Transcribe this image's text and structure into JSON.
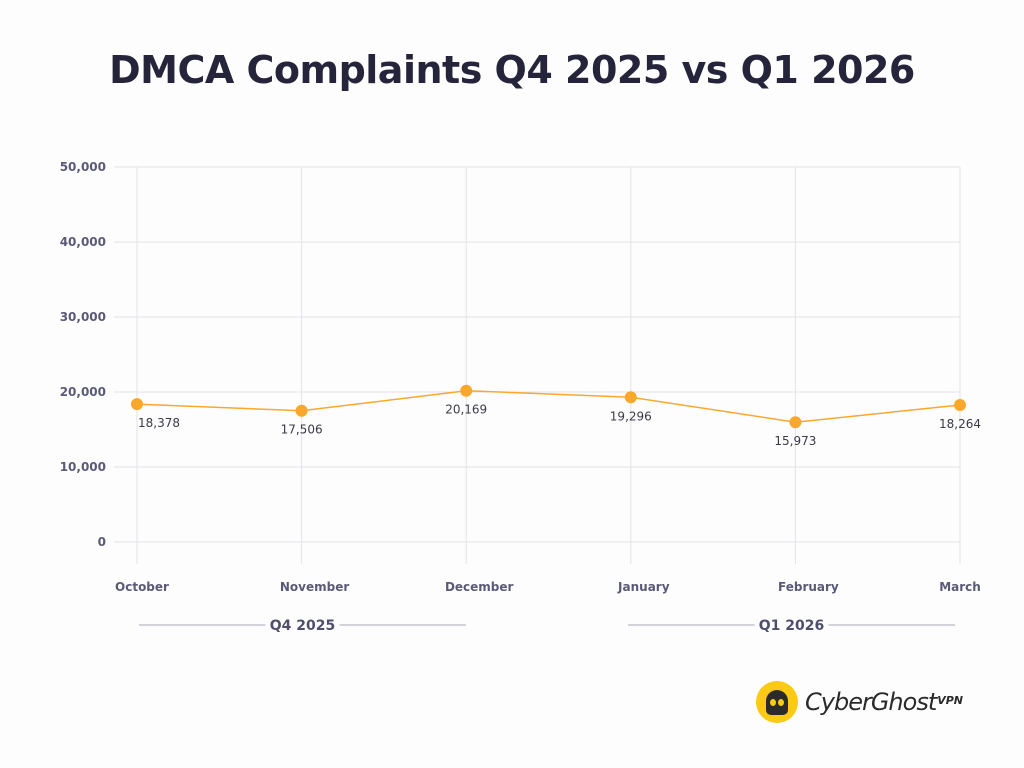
{
  "chart_data": {
    "type": "line",
    "title": "DMCA Complaints Q4 2025 vs Q1 2026",
    "xlabel": "",
    "ylabel": "",
    "categories": [
      "October",
      "November",
      "December",
      "January",
      "February",
      "March"
    ],
    "series": [
      {
        "name": "DMCA Complaints",
        "values": [
          18378,
          17506,
          20169,
          19296,
          15973,
          18264
        ],
        "labels": [
          "18,378",
          "17,506",
          "20,169",
          "19,296",
          "15,973",
          "18,264"
        ],
        "color": "#f9a82b"
      }
    ],
    "ylim": [
      0,
      50000
    ],
    "yticks": [
      0,
      10000,
      20000,
      30000,
      40000,
      50000
    ],
    "ytick_labels": [
      "0",
      "10,000",
      "20,000",
      "30,000",
      "40,000",
      "50,000"
    ],
    "grid": true,
    "groups": [
      {
        "label": "Q4 2025",
        "categories": [
          "October",
          "November",
          "December"
        ]
      },
      {
        "label": "Q1 2026",
        "categories": [
          "January",
          "February",
          "March"
        ]
      }
    ]
  },
  "brand": {
    "name": "CyberGhost",
    "suffix": "VPN",
    "badge_color": "#fcc914"
  }
}
